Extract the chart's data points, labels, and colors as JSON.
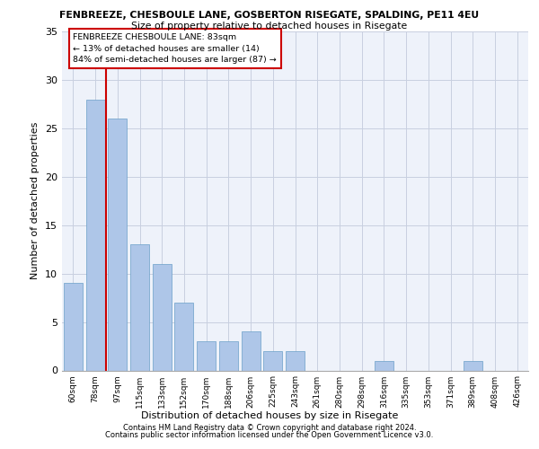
{
  "title1": "FENBREEZE, CHESBOULE LANE, GOSBERTON RISEGATE, SPALDING, PE11 4EU",
  "title2": "Size of property relative to detached houses in Risegate",
  "xlabel": "Distribution of detached houses by size in Risegate",
  "ylabel": "Number of detached properties",
  "categories": [
    "60sqm",
    "78sqm",
    "97sqm",
    "115sqm",
    "133sqm",
    "152sqm",
    "170sqm",
    "188sqm",
    "206sqm",
    "225sqm",
    "243sqm",
    "261sqm",
    "280sqm",
    "298sqm",
    "316sqm",
    "335sqm",
    "353sqm",
    "371sqm",
    "389sqm",
    "408sqm",
    "426sqm"
  ],
  "values": [
    9,
    28,
    26,
    13,
    11,
    7,
    3,
    3,
    4,
    2,
    2,
    0,
    0,
    0,
    1,
    0,
    0,
    0,
    1,
    0,
    0
  ],
  "bar_color": "#aec6e8",
  "bar_edge_color": "#6a9fc8",
  "vline_x": 1.47,
  "vline_color": "#cc0000",
  "annotation_title": "FENBREEZE CHESBOULE LANE: 83sqm",
  "annotation_line1": "← 13% of detached houses are smaller (14)",
  "annotation_line2": "84% of semi-detached houses are larger (87) →",
  "annotation_box_color": "#ffffff",
  "annotation_box_edge": "#cc0000",
  "ylim": [
    0,
    35
  ],
  "yticks": [
    0,
    5,
    10,
    15,
    20,
    25,
    30,
    35
  ],
  "footer1": "Contains HM Land Registry data © Crown copyright and database right 2024.",
  "footer2": "Contains public sector information licensed under the Open Government Licence v3.0.",
  "bg_color": "#eef2fa",
  "grid_color": "#c8cfe0"
}
